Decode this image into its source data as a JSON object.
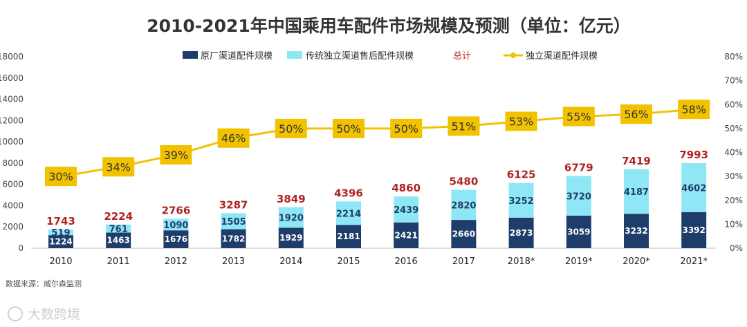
{
  "chart_data": {
    "type": "bar",
    "title": "2010-2021年中国乘用车配件市场规模及预测（单位：亿元）",
    "categories": [
      "2010",
      "2011",
      "2012",
      "2013",
      "2014",
      "2015",
      "2016",
      "2017",
      "2018*",
      "2019*",
      "2020*",
      "2021*"
    ],
    "series": [
      {
        "name": "原厂渠道配件规模",
        "kind": "stacked-bar",
        "color": "#1f3d6b",
        "values": [
          1224,
          1463,
          1676,
          1782,
          1929,
          2181,
          2421,
          2660,
          2873,
          3059,
          3232,
          3392
        ]
      },
      {
        "name": "传统独立渠道售后配件规模",
        "kind": "stacked-bar",
        "color": "#8fe6f5",
        "values": [
          519,
          761,
          1090,
          1505,
          1920,
          2214,
          2439,
          2820,
          3252,
          3720,
          4187,
          4602
        ]
      },
      {
        "name": "总计",
        "kind": "label",
        "color": "#b22222",
        "values": [
          1743,
          2224,
          2766,
          3287,
          3849,
          4396,
          4860,
          5480,
          6125,
          6779,
          7419,
          7993
        ]
      },
      {
        "name": "独立渠道配件规模",
        "kind": "line",
        "axis": "right",
        "color": "#f2c200",
        "values": [
          30,
          34,
          39,
          46,
          50,
          50,
          50,
          51,
          53,
          55,
          56,
          58
        ],
        "labels": [
          "30%",
          "34%",
          "39%",
          "46%",
          "50%",
          "50%",
          "50%",
          "51%",
          "53%",
          "55%",
          "56%",
          "58%"
        ]
      }
    ],
    "ylim": [
      0,
      18000
    ],
    "yticks": [
      "0",
      "2000",
      "4000",
      "6000",
      "8000",
      "10000",
      "12000",
      "14000",
      "16000",
      "18000"
    ],
    "y2lim": [
      0,
      80
    ],
    "y2ticks": [
      "0%",
      "10%",
      "20%",
      "30%",
      "40%",
      "50%",
      "60%",
      "70%",
      "80%"
    ],
    "legend_position": "top"
  },
  "source": "数据来源：威尔森监测",
  "watermark": "大数跨境"
}
